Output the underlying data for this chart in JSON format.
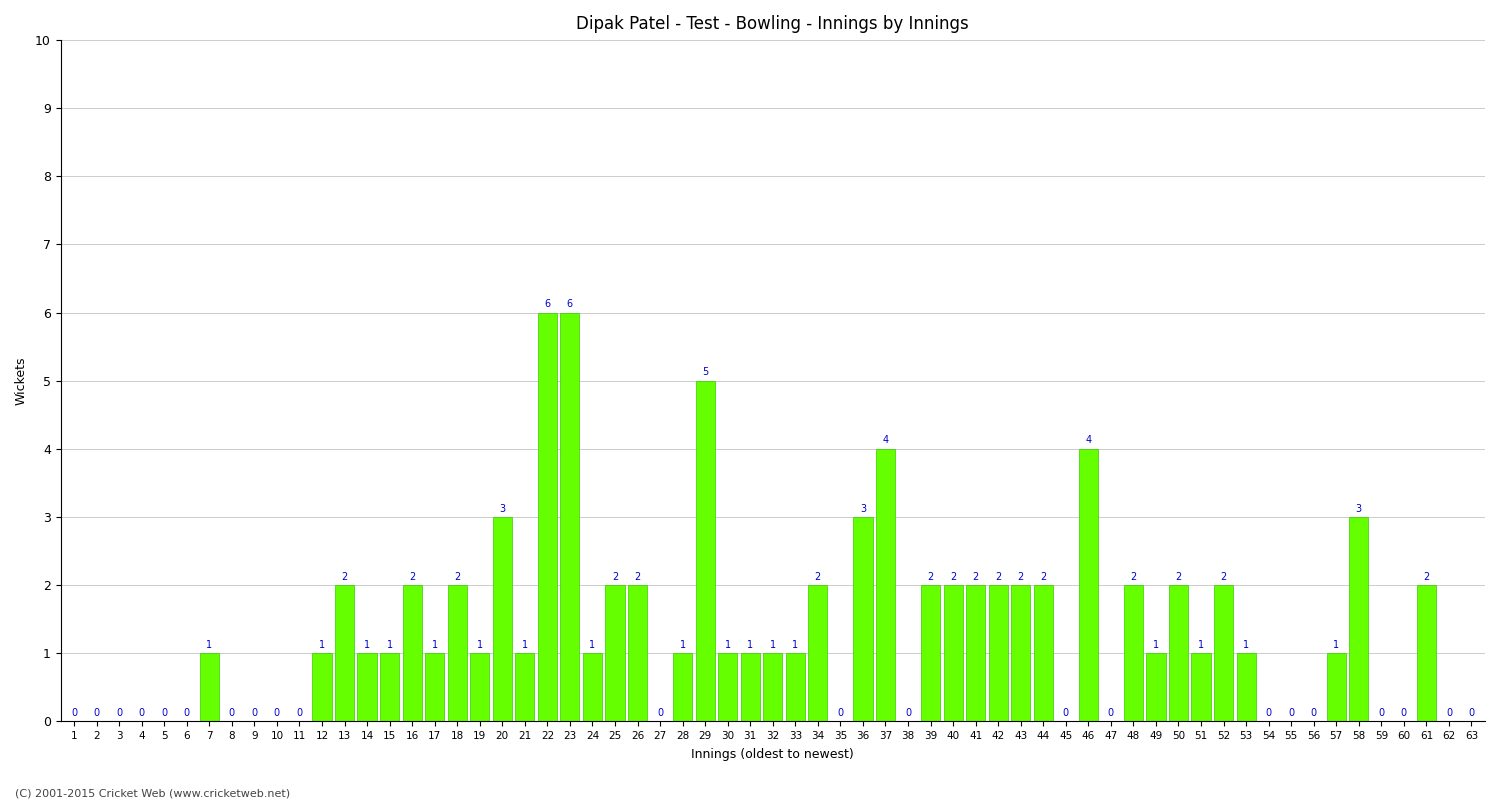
{
  "title": "Dipak Patel - Test - Bowling - Innings by Innings",
  "xlabel": "Innings (oldest to newest)",
  "ylabel": "Wickets",
  "bar_color": "#66ff00",
  "bar_edge_color": "#33cc00",
  "label_color": "#0000cc",
  "background_color": "#ffffff",
  "grid_color": "#cccccc",
  "ylim": [
    0,
    10
  ],
  "yticks": [
    0,
    1,
    2,
    3,
    4,
    5,
    6,
    7,
    8,
    9,
    10
  ],
  "innings": [
    1,
    2,
    3,
    4,
    5,
    6,
    7,
    8,
    9,
    10,
    11,
    12,
    13,
    14,
    15,
    16,
    17,
    18,
    19,
    20,
    21,
    22,
    23,
    24,
    25,
    26,
    27,
    28,
    29,
    30,
    31,
    32,
    33,
    34,
    35,
    36,
    37,
    38,
    39,
    40,
    41,
    42,
    43,
    44,
    45,
    46,
    47,
    48,
    49,
    50,
    51,
    52,
    53,
    54,
    55,
    56,
    57,
    58,
    59,
    60,
    61,
    62,
    63
  ],
  "wickets": [
    0,
    0,
    0,
    0,
    0,
    0,
    1,
    0,
    0,
    0,
    0,
    1,
    2,
    1,
    1,
    2,
    1,
    2,
    1,
    3,
    1,
    6,
    6,
    1,
    2,
    2,
    0,
    1,
    5,
    1,
    1,
    1,
    1,
    2,
    0,
    3,
    4,
    0,
    2,
    2,
    2,
    2,
    2,
    2,
    0,
    4,
    0,
    2,
    1,
    2,
    1,
    2,
    1,
    0,
    0,
    0,
    1,
    3,
    0,
    0,
    2,
    0,
    0
  ],
  "footer": "(C) 2001-2015 Cricket Web (www.cricketweb.net)"
}
